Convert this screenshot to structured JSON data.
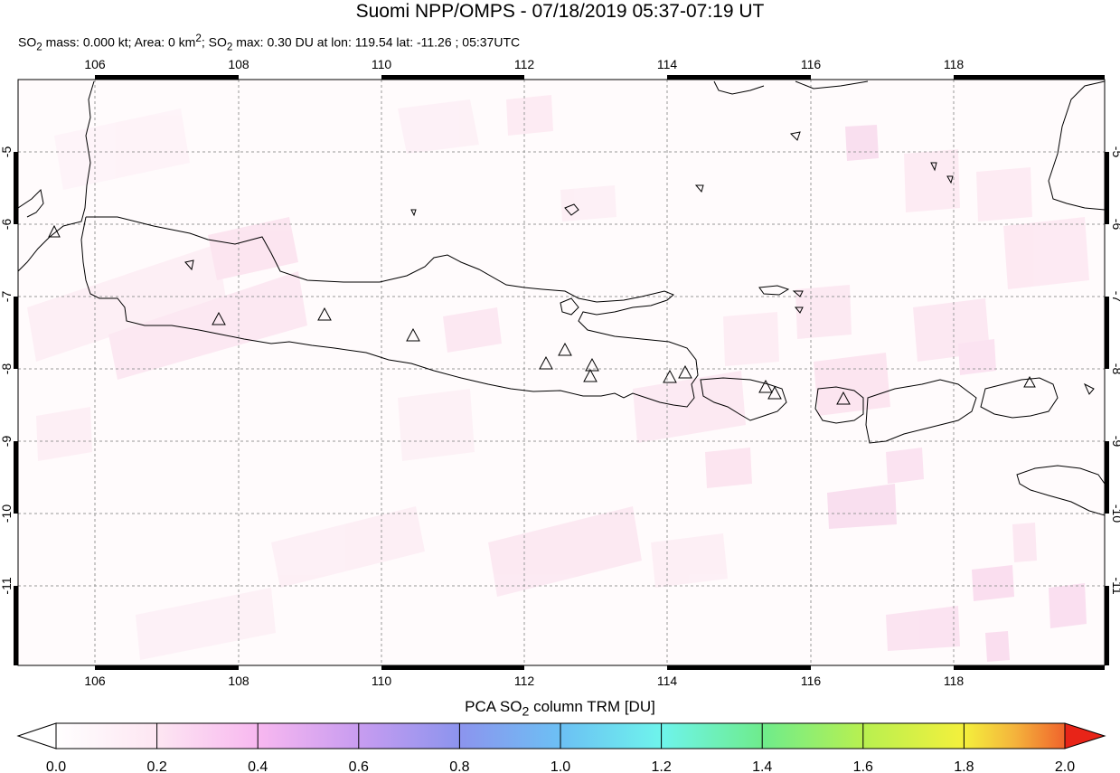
{
  "header": {
    "title": "Suomi NPP/OMPS - 07/18/2019 05:37-07:19 UT",
    "subtitle": "SO₂ mass: 0.000 kt; Area: 0 km²; SO₂ max: 0.30 DU at lon: 119.54 lat: -11.26 ; 05:37UTC"
  },
  "map": {
    "lon_range": [
      105.0,
      120.0
    ],
    "lat_range": [
      -12.0,
      -4.0
    ],
    "lon_ticks": [
      "106",
      "108",
      "110",
      "112",
      "114",
      "116",
      "118"
    ],
    "lat_ticks": [
      "-5",
      "-6",
      "-7",
      "-8",
      "-9",
      "-10",
      "-11"
    ],
    "grid": "dashed",
    "volcano_marker": "triangle-icon",
    "volcano_count": 16
  },
  "colorbar": {
    "label": "PCA SO₂ column TRM [DU]",
    "ticks": [
      "0.0",
      "0.2",
      "0.4",
      "0.6",
      "0.8",
      "1.0",
      "1.2",
      "1.4",
      "1.6",
      "1.8",
      "2.0"
    ],
    "range": [
      0.0,
      2.0
    ],
    "colors": [
      "#ffffff",
      "#fde6f2",
      "#f8b8f0",
      "#c89cf0",
      "#8c94ee",
      "#6cc0f4",
      "#6ef4ec",
      "#6eec8c",
      "#b8f050",
      "#f4f03c",
      "#f4b43c",
      "#f0642c",
      "#e82418"
    ]
  }
}
